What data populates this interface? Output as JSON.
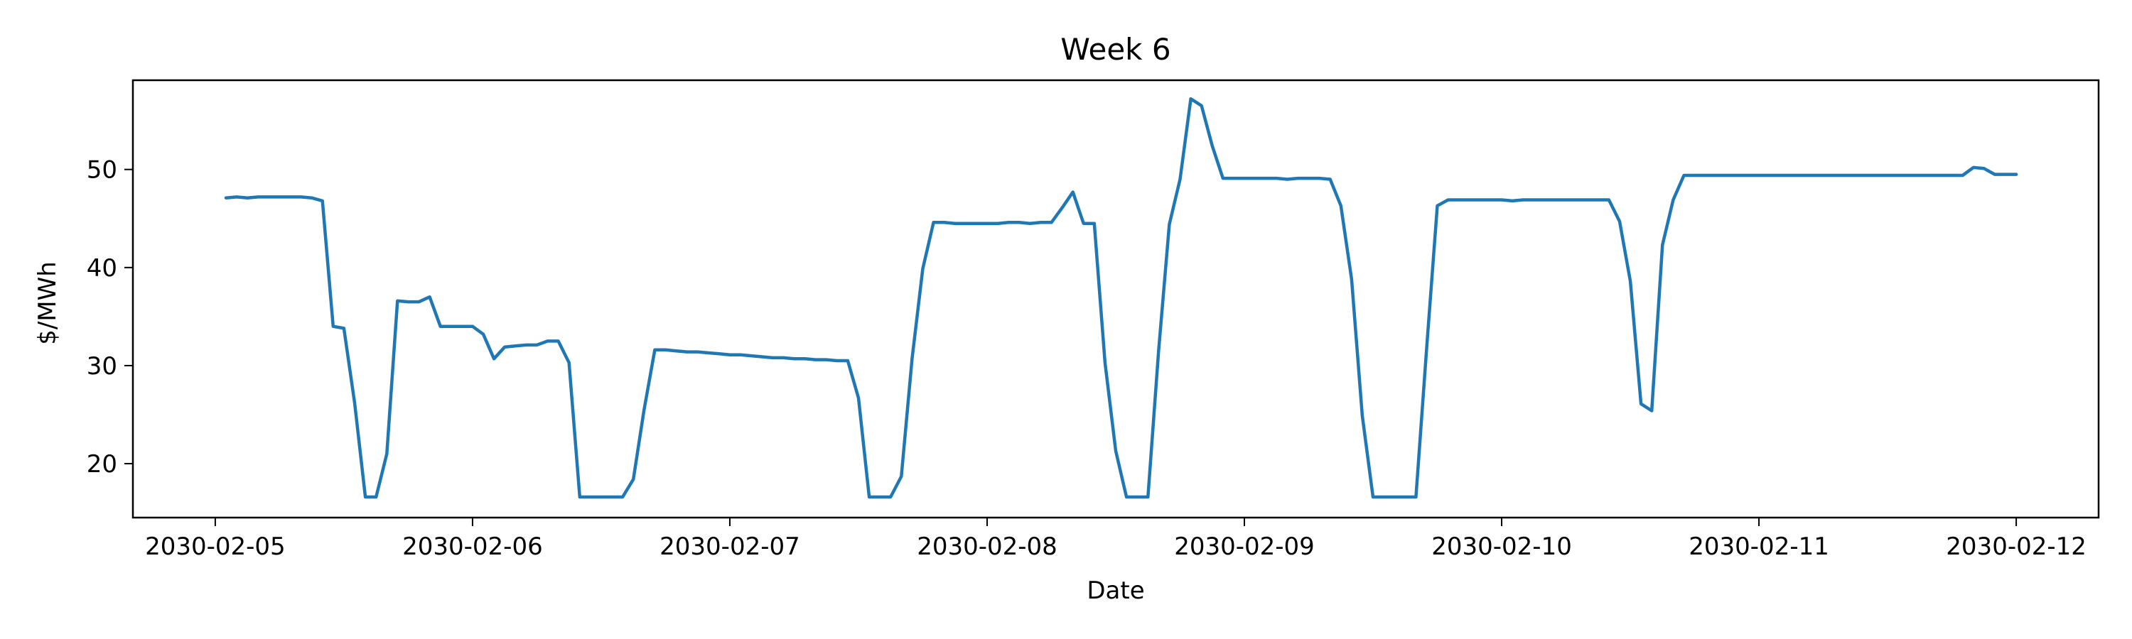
{
  "chart_data": {
    "type": "line",
    "title": "Week 6",
    "xlabel": "Date",
    "ylabel": "$/MWh",
    "xlim": [
      "2030-02-04T16:19",
      "2030-02-12T07:41"
    ],
    "ylim": [
      14.5,
      59.1
    ],
    "x_ticks": [
      "2030-02-05",
      "2030-02-06",
      "2030-02-07",
      "2030-02-08",
      "2030-02-09",
      "2030-02-10",
      "2030-02-11",
      "2030-02-12"
    ],
    "y_ticks": [
      20,
      30,
      40,
      50
    ],
    "grid": false,
    "series_color": "#1f77b4",
    "series": [
      {
        "x": [
          "2030-02-05T01:00",
          "2030-02-05T02:00",
          "2030-02-05T03:00",
          "2030-02-05T04:00",
          "2030-02-05T05:00",
          "2030-02-05T06:00",
          "2030-02-05T07:00",
          "2030-02-05T08:00",
          "2030-02-05T09:00",
          "2030-02-05T10:00",
          "2030-02-05T11:00",
          "2030-02-05T12:00",
          "2030-02-05T13:00",
          "2030-02-05T14:00",
          "2030-02-05T15:00",
          "2030-02-05T16:00",
          "2030-02-05T17:00",
          "2030-02-05T18:00",
          "2030-02-05T19:00",
          "2030-02-05T20:00",
          "2030-02-05T21:00",
          "2030-02-05T22:00",
          "2030-02-05T23:00",
          "2030-02-06T00:00",
          "2030-02-06T01:00",
          "2030-02-06T02:00",
          "2030-02-06T03:00",
          "2030-02-06T04:00",
          "2030-02-06T05:00",
          "2030-02-06T06:00",
          "2030-02-06T07:00",
          "2030-02-06T08:00",
          "2030-02-06T09:00",
          "2030-02-06T10:00",
          "2030-02-06T11:00",
          "2030-02-06T12:00",
          "2030-02-06T13:00",
          "2030-02-06T14:00",
          "2030-02-06T15:00",
          "2030-02-06T16:00",
          "2030-02-06T17:00",
          "2030-02-06T18:00",
          "2030-02-06T19:00",
          "2030-02-06T20:00",
          "2030-02-06T21:00",
          "2030-02-06T22:00",
          "2030-02-06T23:00",
          "2030-02-07T00:00",
          "2030-02-07T01:00",
          "2030-02-07T02:00",
          "2030-02-07T03:00",
          "2030-02-07T04:00",
          "2030-02-07T05:00",
          "2030-02-07T06:00",
          "2030-02-07T07:00",
          "2030-02-07T08:00",
          "2030-02-07T09:00",
          "2030-02-07T10:00",
          "2030-02-07T11:00",
          "2030-02-07T12:00",
          "2030-02-07T13:00",
          "2030-02-07T14:00",
          "2030-02-07T15:00",
          "2030-02-07T16:00",
          "2030-02-07T17:00",
          "2030-02-07T18:00",
          "2030-02-07T19:00",
          "2030-02-07T20:00",
          "2030-02-07T21:00",
          "2030-02-07T22:00",
          "2030-02-07T23:00",
          "2030-02-08T00:00",
          "2030-02-08T01:00",
          "2030-02-08T02:00",
          "2030-02-08T03:00",
          "2030-02-08T04:00",
          "2030-02-08T05:00",
          "2030-02-08T06:00",
          "2030-02-08T07:00",
          "2030-02-08T08:00",
          "2030-02-08T09:00",
          "2030-02-08T10:00",
          "2030-02-08T11:00",
          "2030-02-08T12:00",
          "2030-02-08T13:00",
          "2030-02-08T14:00",
          "2030-02-08T15:00",
          "2030-02-08T16:00",
          "2030-02-08T17:00",
          "2030-02-08T18:00",
          "2030-02-08T19:00",
          "2030-02-08T20:00",
          "2030-02-08T21:00",
          "2030-02-08T22:00",
          "2030-02-08T23:00",
          "2030-02-09T00:00",
          "2030-02-09T01:00",
          "2030-02-09T02:00",
          "2030-02-09T03:00",
          "2030-02-09T04:00",
          "2030-02-09T05:00",
          "2030-02-09T06:00",
          "2030-02-09T07:00",
          "2030-02-09T08:00",
          "2030-02-09T09:00",
          "2030-02-09T10:00",
          "2030-02-09T11:00",
          "2030-02-09T12:00",
          "2030-02-09T13:00",
          "2030-02-09T14:00",
          "2030-02-09T15:00",
          "2030-02-09T16:00",
          "2030-02-09T17:00",
          "2030-02-09T18:00",
          "2030-02-09T19:00",
          "2030-02-09T20:00",
          "2030-02-09T21:00",
          "2030-02-09T22:00",
          "2030-02-09T23:00",
          "2030-02-10T00:00",
          "2030-02-10T01:00",
          "2030-02-10T02:00",
          "2030-02-10T03:00",
          "2030-02-10T04:00",
          "2030-02-10T05:00",
          "2030-02-10T06:00",
          "2030-02-10T07:00",
          "2030-02-10T08:00",
          "2030-02-10T09:00",
          "2030-02-10T10:00",
          "2030-02-10T11:00",
          "2030-02-10T12:00",
          "2030-02-10T13:00",
          "2030-02-10T14:00",
          "2030-02-10T15:00",
          "2030-02-10T16:00",
          "2030-02-10T17:00",
          "2030-02-10T18:00",
          "2030-02-10T19:00",
          "2030-02-10T20:00",
          "2030-02-10T21:00",
          "2030-02-10T22:00",
          "2030-02-10T23:00",
          "2030-02-11T00:00",
          "2030-02-11T01:00",
          "2030-02-11T02:00",
          "2030-02-11T03:00",
          "2030-02-11T04:00",
          "2030-02-11T05:00",
          "2030-02-11T06:00",
          "2030-02-11T07:00",
          "2030-02-11T08:00",
          "2030-02-11T09:00",
          "2030-02-11T10:00",
          "2030-02-11T11:00",
          "2030-02-11T12:00",
          "2030-02-11T13:00",
          "2030-02-11T14:00",
          "2030-02-11T15:00",
          "2030-02-11T16:00",
          "2030-02-11T17:00",
          "2030-02-11T18:00",
          "2030-02-11T19:00",
          "2030-02-11T20:00",
          "2030-02-11T21:00",
          "2030-02-11T22:00",
          "2030-02-11T23:00",
          "2030-02-12T00:00"
        ],
        "values": [
          47.1,
          47.2,
          47.1,
          47.2,
          47.2,
          47.2,
          47.2,
          47.2,
          47.1,
          46.8,
          34.0,
          33.8,
          26.2,
          16.6,
          16.6,
          21.0,
          36.6,
          36.5,
          36.5,
          37.0,
          34.0,
          34.0,
          34.0,
          34.0,
          33.2,
          30.7,
          31.9,
          32.0,
          32.1,
          32.1,
          32.5,
          32.5,
          30.3,
          16.6,
          16.6,
          16.6,
          16.6,
          16.6,
          18.4,
          25.5,
          31.6,
          31.6,
          31.5,
          31.4,
          31.4,
          31.3,
          31.2,
          31.1,
          31.1,
          31.0,
          30.9,
          30.8,
          30.8,
          30.7,
          30.7,
          30.6,
          30.6,
          30.5,
          30.5,
          26.7,
          16.6,
          16.6,
          16.6,
          18.7,
          30.7,
          39.9,
          44.6,
          44.6,
          44.5,
          44.5,
          44.5,
          44.5,
          44.5,
          44.6,
          44.6,
          44.5,
          44.6,
          44.6,
          46.1,
          47.7,
          44.5,
          44.5,
          30.3,
          21.3,
          16.6,
          16.6,
          16.6,
          31.5,
          44.4,
          49.0,
          57.2,
          56.5,
          52.4,
          49.1,
          49.1,
          49.1,
          49.1,
          49.1,
          49.1,
          49.0,
          49.1,
          49.1,
          49.1,
          49.0,
          46.3,
          38.8,
          24.9,
          16.6,
          16.6,
          16.6,
          16.6,
          16.6,
          31.8,
          46.3,
          46.9,
          46.9,
          46.9,
          46.9,
          46.9,
          46.9,
          46.8,
          46.9,
          46.9,
          46.9,
          46.9,
          46.9,
          46.9,
          46.9,
          46.9,
          46.9,
          44.7,
          38.6,
          26.1,
          25.4,
          42.3,
          46.9,
          49.4,
          49.4,
          49.4,
          49.4,
          49.4,
          49.4,
          49.4,
          49.4,
          49.4,
          49.4,
          49.4,
          49.4,
          49.4,
          49.4,
          49.4,
          49.4,
          49.4,
          49.4,
          49.4,
          49.4,
          49.4,
          49.4,
          49.4,
          49.4,
          49.4,
          49.4,
          49.4,
          50.2,
          50.1,
          49.5,
          49.5,
          49.5
        ]
      }
    ]
  }
}
